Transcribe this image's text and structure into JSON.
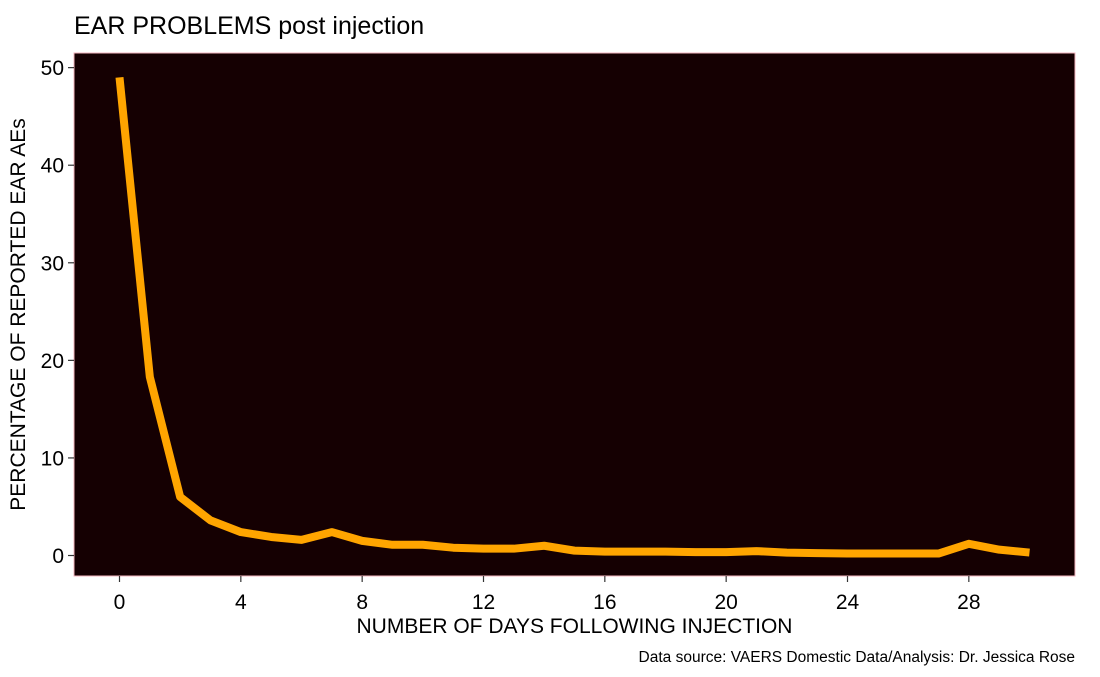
{
  "chart_data": {
    "type": "line",
    "title": "EAR PROBLEMS post injection",
    "xlabel": "NUMBER OF DAYS FOLLOWING INJECTION",
    "ylabel": "PERCENTAGE OF REPORTED EAR AEs",
    "caption": "Data source: VAERS Domestic Data/Analysis: Dr. Jessica Rose",
    "xlim": [
      -1.5,
      31.5
    ],
    "ylim": [
      -2.1,
      51.5
    ],
    "x_ticks": [
      0,
      4,
      8,
      12,
      16,
      20,
      24,
      28
    ],
    "y_ticks": [
      0,
      10,
      20,
      30,
      40,
      50
    ],
    "grid": false,
    "colors": {
      "panel_background": "#150002",
      "panel_border": "#f4b6bf",
      "line": "#ffa500",
      "tick": "#333333"
    },
    "series": [
      {
        "x": [
          0,
          1,
          2,
          3,
          4,
          5,
          6,
          7,
          8,
          9,
          10,
          11,
          12,
          13,
          14,
          15,
          16,
          17,
          18,
          19,
          20,
          21,
          22,
          23,
          24,
          25,
          26,
          27,
          28,
          29,
          30
        ],
        "values": [
          49.0,
          18.3,
          6.0,
          3.6,
          2.4,
          1.9,
          1.6,
          2.4,
          1.5,
          1.1,
          1.1,
          0.8,
          0.7,
          0.7,
          1.0,
          0.5,
          0.4,
          0.4,
          0.4,
          0.35,
          0.35,
          0.45,
          0.3,
          0.25,
          0.2,
          0.2,
          0.2,
          0.2,
          1.2,
          0.6,
          0.3
        ]
      }
    ]
  }
}
